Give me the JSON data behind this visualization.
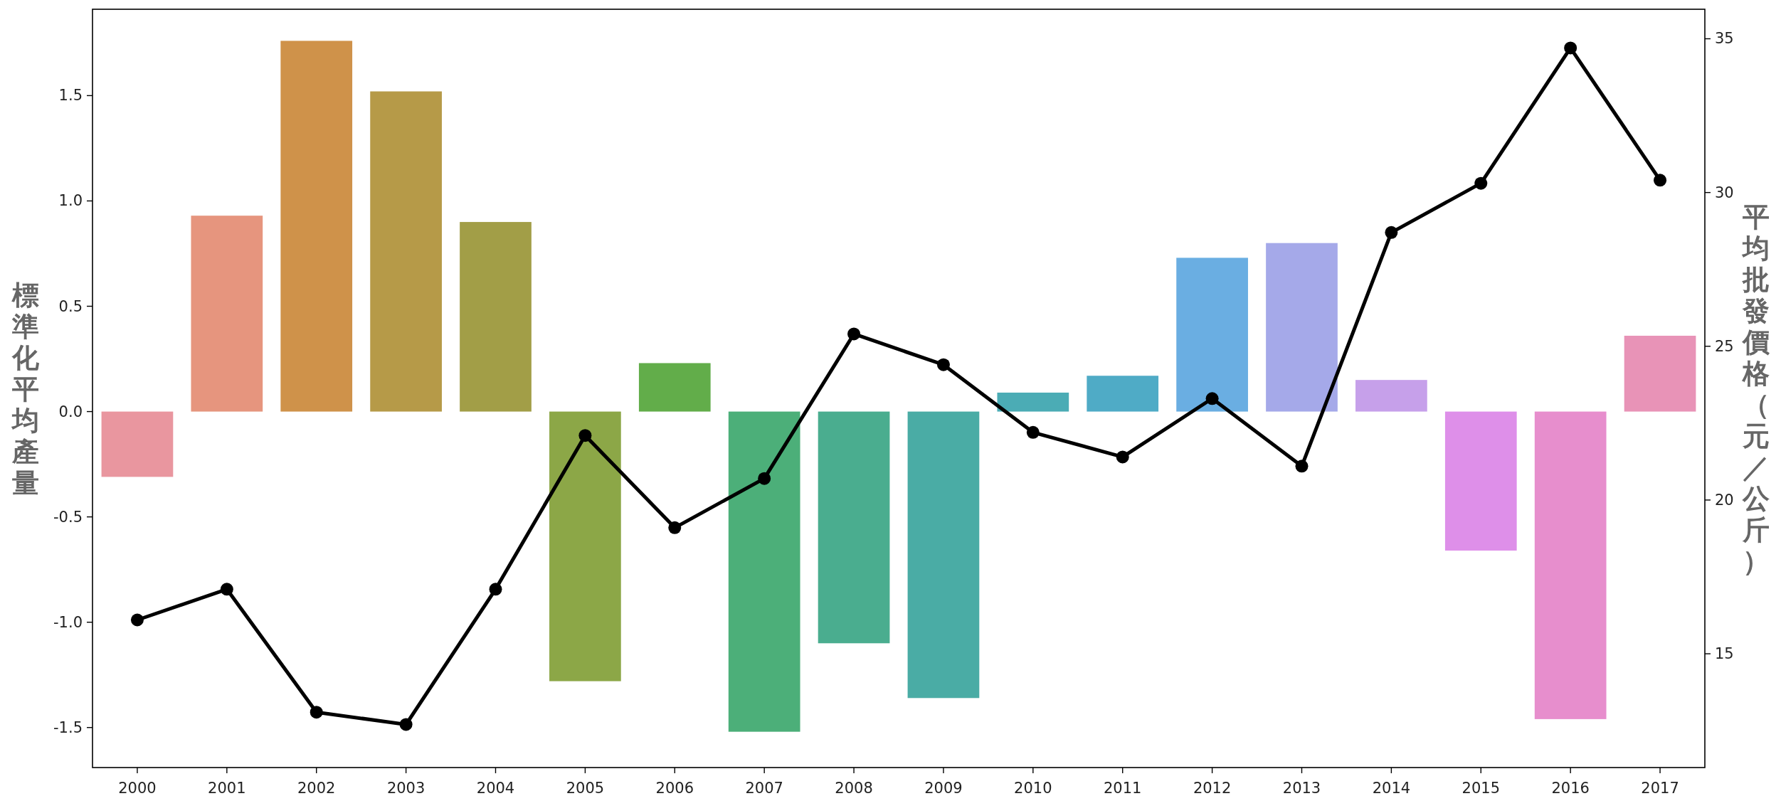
{
  "chart_data": {
    "type": "bar",
    "ylabel": "標準化平均產量",
    "y2label": "平均批發價格（元／公斤）",
    "categories": [
      "2000",
      "2001",
      "2002",
      "2003",
      "2004",
      "2005",
      "2006",
      "2007",
      "2008",
      "2009",
      "2010",
      "2011",
      "2012",
      "2013",
      "2014",
      "2015",
      "2016",
      "2017"
    ],
    "series": [
      {
        "colors": [
          "#e9969f",
          "#e6957e",
          "#cf924a",
          "#b69a48",
          "#a29e47",
          "#8ca747",
          "#62ad4a",
          "#4caf79",
          "#4aad8f",
          "#4aaca5",
          "#4bacb5",
          "#4fabc6",
          "#6aaee2",
          "#a5a9e9",
          "#c6a0ea",
          "#de8fe9",
          "#e78ecd",
          "#e893b7"
        ],
        "values": [
          -0.31,
          0.93,
          1.76,
          1.52,
          0.9,
          -1.28,
          0.23,
          -1.52,
          -1.1,
          -1.36,
          0.09,
          0.17,
          0.73,
          0.8,
          0.15,
          -0.66,
          -1.46,
          0.36
        ]
      },
      {
        "type": "line",
        "axis": "y2",
        "color": "#000000",
        "values": [
          16.1,
          17.1,
          13.1,
          12.7,
          17.1,
          22.1,
          19.1,
          20.7,
          25.4,
          24.4,
          22.2,
          21.4,
          23.3,
          21.1,
          28.7,
          30.3,
          34.7,
          30.4
        ]
      }
    ],
    "ylim": [
      -1.69,
      1.91
    ],
    "yticks": [
      {
        "value": -1.5,
        "label": "-1.5"
      },
      {
        "value": -1,
        "label": "-1.0"
      },
      {
        "value": -0.5,
        "label": "-0.5"
      },
      {
        "value": 0,
        "label": "0.0"
      },
      {
        "value": 0.5,
        "label": "0.5"
      },
      {
        "value": 1,
        "label": "1.0"
      },
      {
        "value": 1.5,
        "label": "1.5"
      }
    ],
    "y2lim": [
      11.3,
      35.96
    ],
    "y2ticks": [
      15,
      20,
      25,
      30,
      35
    ],
    "marker": "circle",
    "line_style": "solid",
    "grid": false
  }
}
